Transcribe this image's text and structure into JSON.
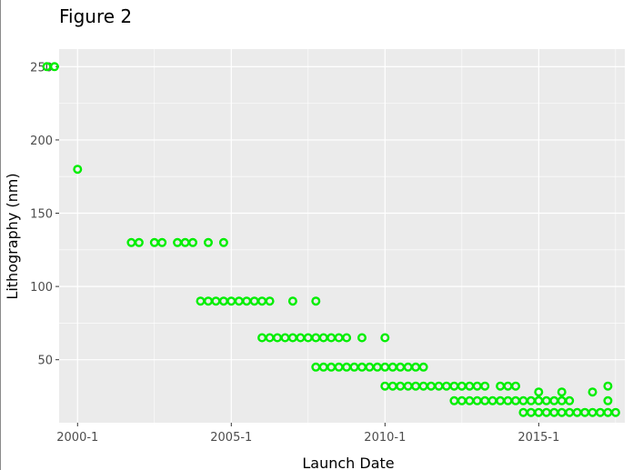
{
  "figure": {
    "title": "Figure 2"
  },
  "chart_data": {
    "type": "scatter",
    "title": "Figure 2",
    "xlabel": "Launch Date",
    "ylabel": "Lithography (nm)",
    "x_unit": "year",
    "xlim": [
      1999.4,
      2017.8
    ],
    "ylim": [
      7,
      262
    ],
    "x_ticks": [
      {
        "value": 2000,
        "label": "2000-1"
      },
      {
        "value": 2005,
        "label": "2005-1"
      },
      {
        "value": 2010,
        "label": "2010-1"
      },
      {
        "value": 2015,
        "label": "2015-1"
      }
    ],
    "y_ticks": [
      50,
      100,
      150,
      200,
      250
    ],
    "grid": true,
    "legend": "none",
    "colors": {
      "points": "#00ee00",
      "panel": "#ebebeb",
      "grid": "#ffffff",
      "axis_text": "#4d4d4d"
    },
    "points": [
      [
        1999.0,
        250
      ],
      [
        1999.25,
        250
      ],
      [
        2000.0,
        180
      ],
      [
        2001.75,
        130
      ],
      [
        2002.0,
        130
      ],
      [
        2002.5,
        130
      ],
      [
        2002.75,
        130
      ],
      [
        2003.25,
        130
      ],
      [
        2003.5,
        130
      ],
      [
        2003.75,
        130
      ],
      [
        2004.25,
        130
      ],
      [
        2004.75,
        130
      ],
      [
        2004.0,
        90
      ],
      [
        2004.25,
        90
      ],
      [
        2004.5,
        90
      ],
      [
        2004.75,
        90
      ],
      [
        2005.0,
        90
      ],
      [
        2005.25,
        90
      ],
      [
        2005.5,
        90
      ],
      [
        2005.75,
        90
      ],
      [
        2006.0,
        90
      ],
      [
        2006.25,
        90
      ],
      [
        2007.0,
        90
      ],
      [
        2007.75,
        90
      ],
      [
        2006.0,
        65
      ],
      [
        2006.25,
        65
      ],
      [
        2006.5,
        65
      ],
      [
        2006.75,
        65
      ],
      [
        2007.0,
        65
      ],
      [
        2007.25,
        65
      ],
      [
        2007.5,
        65
      ],
      [
        2007.75,
        65
      ],
      [
        2008.0,
        65
      ],
      [
        2008.25,
        65
      ],
      [
        2008.5,
        65
      ],
      [
        2008.75,
        65
      ],
      [
        2009.25,
        65
      ],
      [
        2010.0,
        65
      ],
      [
        2007.75,
        45
      ],
      [
        2008.0,
        45
      ],
      [
        2008.25,
        45
      ],
      [
        2008.5,
        45
      ],
      [
        2008.75,
        45
      ],
      [
        2009.0,
        45
      ],
      [
        2009.25,
        45
      ],
      [
        2009.5,
        45
      ],
      [
        2009.75,
        45
      ],
      [
        2010.0,
        45
      ],
      [
        2010.25,
        45
      ],
      [
        2010.5,
        45
      ],
      [
        2010.75,
        45
      ],
      [
        2011.0,
        45
      ],
      [
        2011.25,
        45
      ],
      [
        2010.0,
        32
      ],
      [
        2010.25,
        32
      ],
      [
        2010.5,
        32
      ],
      [
        2010.75,
        32
      ],
      [
        2011.0,
        32
      ],
      [
        2011.25,
        32
      ],
      [
        2011.5,
        32
      ],
      [
        2011.75,
        32
      ],
      [
        2012.0,
        32
      ],
      [
        2012.25,
        32
      ],
      [
        2012.5,
        32
      ],
      [
        2012.75,
        32
      ],
      [
        2013.0,
        32
      ],
      [
        2013.25,
        32
      ],
      [
        2013.75,
        32
      ],
      [
        2014.0,
        32
      ],
      [
        2014.25,
        32
      ],
      [
        2012.25,
        22
      ],
      [
        2012.5,
        22
      ],
      [
        2012.75,
        22
      ],
      [
        2013.0,
        22
      ],
      [
        2013.25,
        22
      ],
      [
        2013.5,
        22
      ],
      [
        2013.75,
        22
      ],
      [
        2014.0,
        22
      ],
      [
        2014.25,
        22
      ],
      [
        2014.5,
        22
      ],
      [
        2014.75,
        22
      ],
      [
        2015.0,
        22
      ],
      [
        2015.25,
        22
      ],
      [
        2015.5,
        22
      ],
      [
        2015.75,
        22
      ],
      [
        2016.0,
        22
      ],
      [
        2017.25,
        22
      ],
      [
        2015.0,
        28
      ],
      [
        2015.75,
        28
      ],
      [
        2016.75,
        28
      ],
      [
        2017.25,
        32
      ],
      [
        2014.5,
        14
      ],
      [
        2014.75,
        14
      ],
      [
        2015.0,
        14
      ],
      [
        2015.25,
        14
      ],
      [
        2015.5,
        14
      ],
      [
        2015.75,
        14
      ],
      [
        2016.0,
        14
      ],
      [
        2016.25,
        14
      ],
      [
        2016.5,
        14
      ],
      [
        2016.75,
        14
      ],
      [
        2017.0,
        14
      ],
      [
        2017.25,
        14
      ],
      [
        2017.5,
        14
      ]
    ]
  }
}
